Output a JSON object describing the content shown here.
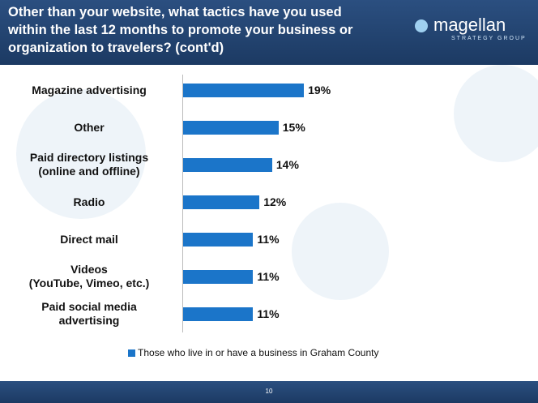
{
  "header": {
    "title": "Other than your website, what tactics have you used\nwithin the last 12 months to promote your business or\norganization to travelers? (cont'd)",
    "logo": "magellan",
    "logo_sub": "STRATEGY GROUP"
  },
  "chart_data": {
    "type": "bar",
    "orientation": "horizontal",
    "categories": [
      "Magazine advertising",
      "Other",
      "Paid directory listings\n(online and offline)",
      "Radio",
      "Direct mail",
      "Videos\n(YouTube, Vimeo, etc.)",
      "Paid social media\nadvertising"
    ],
    "series": [
      {
        "name": "Those who live in or have a business in Graham County",
        "color": "#1b75c9",
        "values": [
          19,
          15,
          14,
          12,
          11,
          11,
          11
        ],
        "value_labels": [
          "19%",
          "15%",
          "14%",
          "12%",
          "11%",
          "11%",
          "11%"
        ]
      }
    ]
  },
  "footer": {
    "page_number": "10"
  }
}
